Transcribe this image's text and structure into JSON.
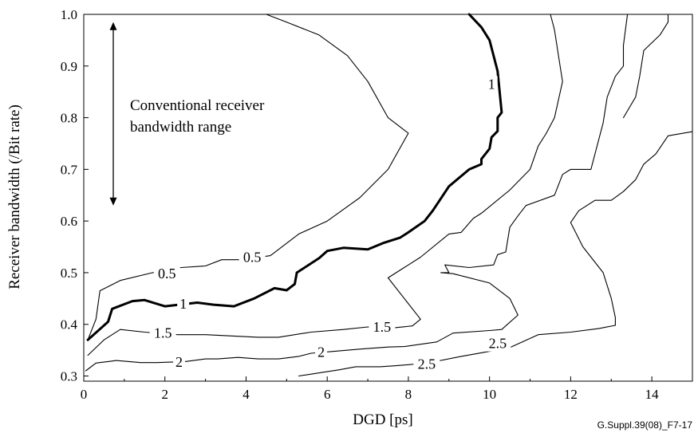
{
  "chart_data": {
    "type": "line",
    "title": "",
    "xlabel": "DGD [ps]",
    "ylabel": "Receiver bandwidth (/Bit rate)",
    "xlim": [
      0,
      15
    ],
    "ylim": [
      0.29,
      1.0
    ],
    "x_ticks": [
      0,
      2,
      4,
      6,
      8,
      10,
      12,
      14
    ],
    "x_tick_labels": [
      "0",
      "2",
      "4",
      "6",
      "8",
      "10",
      "12",
      "14"
    ],
    "y_ticks": [
      0.3,
      0.4,
      0.5,
      0.6,
      0.7,
      0.8,
      0.9,
      1.0
    ],
    "y_tick_labels": [
      "0.3",
      "0.4",
      "0.5",
      "0.6",
      "0.7",
      "0.8",
      "0.9",
      "1.0"
    ],
    "grid": false,
    "annotation": {
      "lines": [
        "Conventional receiver",
        "bandwidth range"
      ],
      "arrow_range": [
        0.63,
        0.985
      ]
    },
    "figure_id": "G.Suppl.39(08)_F7-17",
    "series": [
      {
        "name": "0.5",
        "bold": false,
        "labels": [
          {
            "text": "0.5",
            "x": 2.05,
            "y": 0.498
          },
          {
            "text": "0.5",
            "x": 4.15,
            "y": 0.53
          }
        ],
        "points": [
          [
            0.1,
            0.37
          ],
          [
            0.3,
            0.41
          ],
          [
            0.4,
            0.465
          ],
          [
            0.9,
            0.485
          ],
          [
            1.7,
            0.5
          ],
          [
            2.4,
            0.51
          ],
          [
            3.0,
            0.513
          ],
          [
            3.4,
            0.525
          ],
          [
            3.9,
            0.525
          ],
          [
            4.6,
            0.533
          ],
          [
            5.3,
            0.575
          ],
          [
            6.0,
            0.6
          ],
          [
            6.8,
            0.645
          ],
          [
            7.5,
            0.7
          ],
          [
            8.0,
            0.77
          ],
          [
            7.5,
            0.8
          ],
          [
            7.0,
            0.87
          ],
          [
            6.5,
            0.92
          ],
          [
            5.8,
            0.96
          ],
          [
            5.0,
            0.985
          ],
          [
            4.5,
            1.0
          ]
        ]
      },
      {
        "name": "1",
        "bold": true,
        "labels": [
          {
            "text": "1",
            "x": 2.45,
            "y": 0.44
          },
          {
            "text": "1",
            "x": 10.05,
            "y": 0.865
          }
        ],
        "points": [
          [
            0.1,
            0.37
          ],
          [
            0.6,
            0.405
          ],
          [
            0.7,
            0.43
          ],
          [
            1.2,
            0.445
          ],
          [
            1.5,
            0.447
          ],
          [
            2.0,
            0.435
          ],
          [
            2.8,
            0.442
          ],
          [
            3.2,
            0.438
          ],
          [
            3.7,
            0.435
          ],
          [
            4.2,
            0.45
          ],
          [
            4.7,
            0.47
          ],
          [
            5.0,
            0.466
          ],
          [
            5.2,
            0.478
          ],
          [
            5.25,
            0.5
          ],
          [
            5.8,
            0.528
          ],
          [
            6.0,
            0.542
          ],
          [
            6.4,
            0.548
          ],
          [
            7.0,
            0.545
          ],
          [
            7.4,
            0.558
          ],
          [
            7.8,
            0.568
          ],
          [
            8.0,
            0.578
          ],
          [
            8.4,
            0.6
          ],
          [
            8.6,
            0.62
          ],
          [
            9.0,
            0.667
          ],
          [
            9.5,
            0.7
          ],
          [
            9.8,
            0.71
          ],
          [
            9.8,
            0.72
          ],
          [
            10.0,
            0.74
          ],
          [
            10.05,
            0.762
          ],
          [
            10.2,
            0.774
          ],
          [
            10.2,
            0.8
          ],
          [
            10.3,
            0.81
          ],
          [
            10.2,
            0.89
          ],
          [
            10.0,
            0.95
          ],
          [
            9.8,
            0.975
          ],
          [
            9.5,
            1.0
          ]
        ]
      },
      {
        "name": "1.5",
        "bold": false,
        "labels": [
          {
            "text": "1.5",
            "x": 1.95,
            "y": 0.383
          },
          {
            "text": "1.5",
            "x": 7.35,
            "y": 0.395
          }
        ],
        "points": [
          [
            0.1,
            0.34
          ],
          [
            0.5,
            0.37
          ],
          [
            0.9,
            0.39
          ],
          [
            1.5,
            0.385
          ],
          [
            2.3,
            0.38
          ],
          [
            3.0,
            0.38
          ],
          [
            4.3,
            0.375
          ],
          [
            4.8,
            0.375
          ],
          [
            5.6,
            0.385
          ],
          [
            6.4,
            0.39
          ],
          [
            7.0,
            0.395
          ],
          [
            7.6,
            0.393
          ],
          [
            8.1,
            0.397
          ],
          [
            8.3,
            0.41
          ],
          [
            7.5,
            0.49
          ],
          [
            8.3,
            0.53
          ],
          [
            9.0,
            0.575
          ],
          [
            9.3,
            0.578
          ],
          [
            9.6,
            0.605
          ],
          [
            9.8,
            0.615
          ],
          [
            10.5,
            0.66
          ],
          [
            11.0,
            0.7
          ],
          [
            11.2,
            0.745
          ],
          [
            11.4,
            0.77
          ],
          [
            11.6,
            0.8
          ],
          [
            11.8,
            0.87
          ],
          [
            11.7,
            0.92
          ],
          [
            11.6,
            0.97
          ],
          [
            11.5,
            1.0
          ]
        ]
      },
      {
        "name": "2",
        "bold": false,
        "labels": [
          {
            "text": "2",
            "x": 2.35,
            "y": 0.327
          },
          {
            "text": "2",
            "x": 5.85,
            "y": 0.346
          }
        ],
        "points": [
          [
            0.05,
            0.31
          ],
          [
            0.3,
            0.325
          ],
          [
            0.6,
            0.328
          ],
          [
            0.8,
            0.33
          ],
          [
            1.4,
            0.326
          ],
          [
            1.8,
            0.326
          ],
          [
            2.5,
            0.328
          ],
          [
            3.0,
            0.333
          ],
          [
            3.3,
            0.333
          ],
          [
            3.8,
            0.336
          ],
          [
            4.3,
            0.333
          ],
          [
            4.8,
            0.333
          ],
          [
            5.3,
            0.338
          ],
          [
            5.6,
            0.344
          ],
          [
            6.2,
            0.348
          ],
          [
            6.8,
            0.352
          ],
          [
            7.5,
            0.356
          ],
          [
            7.9,
            0.357
          ],
          [
            8.7,
            0.366
          ],
          [
            9.1,
            0.383
          ],
          [
            10.0,
            0.388
          ],
          [
            10.3,
            0.39
          ],
          [
            10.7,
            0.418
          ],
          [
            10.5,
            0.45
          ],
          [
            10.0,
            0.48
          ],
          [
            9.1,
            0.498
          ],
          [
            8.8,
            0.5
          ],
          [
            9.0,
            0.5
          ],
          [
            8.9,
            0.515
          ],
          [
            9.5,
            0.51
          ],
          [
            10.1,
            0.515
          ],
          [
            10.2,
            0.535
          ],
          [
            10.4,
            0.54
          ],
          [
            10.5,
            0.588
          ],
          [
            10.7,
            0.61
          ],
          [
            10.9,
            0.63
          ],
          [
            11.6,
            0.65
          ],
          [
            11.8,
            0.69
          ],
          [
            12.0,
            0.7
          ],
          [
            12.5,
            0.7
          ],
          [
            12.7,
            0.76
          ],
          [
            12.8,
            0.79
          ],
          [
            12.9,
            0.84
          ],
          [
            13.1,
            0.88
          ],
          [
            13.3,
            0.9
          ],
          [
            13.3,
            0.94
          ],
          [
            13.4,
            1.0
          ]
        ]
      },
      {
        "name": "2.5",
        "bold": false,
        "labels": [
          {
            "text": "2.5",
            "x": 8.45,
            "y": 0.323
          },
          {
            "text": "2.5",
            "x": 10.2,
            "y": 0.363
          }
        ],
        "points": [
          [
            5.3,
            0.3
          ],
          [
            6.3,
            0.312
          ],
          [
            6.7,
            0.318
          ],
          [
            7.3,
            0.318
          ],
          [
            7.7,
            0.32
          ],
          [
            8.3,
            0.324
          ],
          [
            8.6,
            0.327
          ],
          [
            9.3,
            0.338
          ],
          [
            9.8,
            0.345
          ],
          [
            10.5,
            0.355
          ],
          [
            11.2,
            0.38
          ],
          [
            12.0,
            0.385
          ],
          [
            12.7,
            0.392
          ],
          [
            13.1,
            0.398
          ],
          [
            13.1,
            0.413
          ],
          [
            13.0,
            0.45
          ],
          [
            12.8,
            0.5
          ],
          [
            12.3,
            0.55
          ],
          [
            12.0,
            0.597
          ],
          [
            12.2,
            0.62
          ],
          [
            12.6,
            0.64
          ],
          [
            13.0,
            0.64
          ],
          [
            13.3,
            0.657
          ],
          [
            13.6,
            0.68
          ],
          [
            13.8,
            0.71
          ],
          [
            14.1,
            0.73
          ],
          [
            14.4,
            0.765
          ],
          [
            15.0,
            0.773
          ]
        ]
      },
      {
        "name": "2.5-upper",
        "bold": false,
        "labels": [],
        "points": [
          [
            13.3,
            0.8
          ],
          [
            13.6,
            0.84
          ],
          [
            13.7,
            0.88
          ],
          [
            13.8,
            0.93
          ],
          [
            14.2,
            0.96
          ],
          [
            14.4,
            0.985
          ],
          [
            14.4,
            1.0
          ]
        ]
      }
    ]
  }
}
